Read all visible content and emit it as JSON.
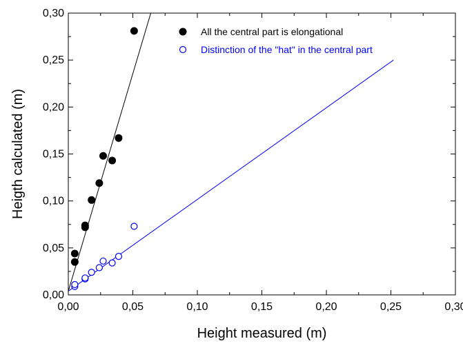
{
  "chart_data": {
    "type": "scatter",
    "title": "",
    "xlabel": "Height measured (m)",
    "ylabel": "Heigth calculated (m)",
    "xlim": [
      0.0,
      0.3
    ],
    "ylim": [
      0.0,
      0.3
    ],
    "x_ticks": [
      "0,00",
      "0,05",
      "0,10",
      "0,15",
      "0,20",
      "0,25",
      "0,30"
    ],
    "y_ticks": [
      "0,00",
      "0,05",
      "0,10",
      "0,15",
      "0,20",
      "0,25",
      "0,30"
    ],
    "legend_position": "top-right",
    "grid": false,
    "series": [
      {
        "name": "All the central part is elongational",
        "color": "#000000",
        "marker": "filled-circle",
        "points": [
          {
            "x": 0.005,
            "y": 0.035
          },
          {
            "x": 0.005,
            "y": 0.044
          },
          {
            "x": 0.013,
            "y": 0.072
          },
          {
            "x": 0.013,
            "y": 0.074
          },
          {
            "x": 0.018,
            "y": 0.101
          },
          {
            "x": 0.024,
            "y": 0.119
          },
          {
            "x": 0.027,
            "y": 0.148
          },
          {
            "x": 0.034,
            "y": 0.143
          },
          {
            "x": 0.039,
            "y": 0.167
          },
          {
            "x": 0.051,
            "y": 0.281
          }
        ],
        "fit_line": {
          "x": [
            0.0,
            0.065
          ],
          "y": [
            0.004,
            0.305
          ]
        }
      },
      {
        "name": "Distinction of the \"hat\" in the central part",
        "color": "#0000ff",
        "marker": "open-circle",
        "points": [
          {
            "x": 0.005,
            "y": 0.009
          },
          {
            "x": 0.005,
            "y": 0.011
          },
          {
            "x": 0.013,
            "y": 0.017
          },
          {
            "x": 0.013,
            "y": 0.018
          },
          {
            "x": 0.018,
            "y": 0.024
          },
          {
            "x": 0.024,
            "y": 0.029
          },
          {
            "x": 0.027,
            "y": 0.036
          },
          {
            "x": 0.034,
            "y": 0.034
          },
          {
            "x": 0.039,
            "y": 0.041
          },
          {
            "x": 0.051,
            "y": 0.073
          }
        ],
        "fit_line": {
          "x": [
            0.0,
            0.252
          ],
          "y": [
            0.004,
            0.25
          ]
        }
      }
    ]
  }
}
